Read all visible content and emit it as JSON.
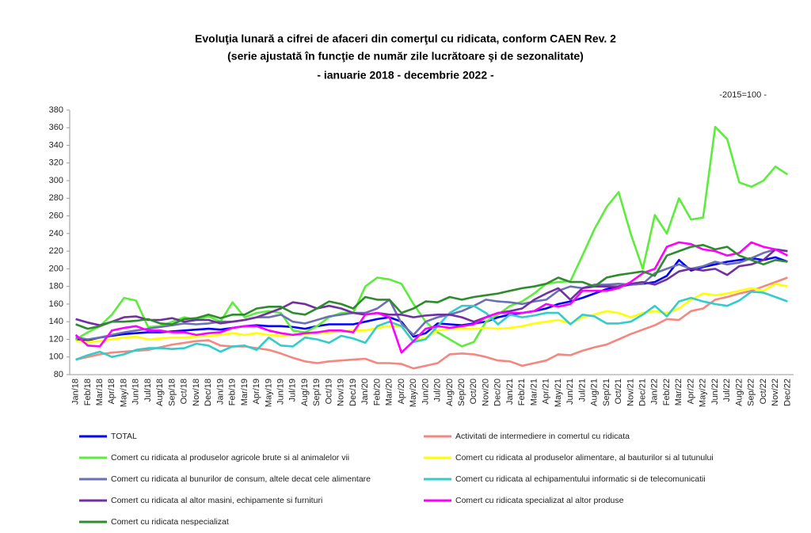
{
  "chart_data": {
    "type": "line",
    "title": [
      "Evoluţia lunară a cifrei de afaceri din comerţul cu ridicata, conform CAEN Rev. 2",
      "(serie ajustată în funcţie de număr zile lucrătoare şi de sezonalitate)",
      "- ianuarie 2018 - decembrie 2022  -"
    ],
    "unit_note": "-2015=100 -",
    "categories": [
      "Jan/18",
      "Feb/18",
      "Mar/18",
      "Apr/18",
      "May/18",
      "Jun/18",
      "Jul/18",
      "Aug/18",
      "Sep/18",
      "Oct/18",
      "Nov/18",
      "Dec/18",
      "Jan/19",
      "Feb/19",
      "Mar/19",
      "Apr/19",
      "May/19",
      "Jun/19",
      "Jul/19",
      "Aug/19",
      "Sep/19",
      "Oct/19",
      "Nov/19",
      "Dec/19",
      "Jan/20",
      "Feb/20",
      "Mar/20",
      "Apr/20",
      "May/20",
      "Jun/20",
      "Jul/20",
      "Aug/20",
      "Sep/20",
      "Oct/20",
      "Nov/20",
      "Dec/20",
      "Jan/21",
      "Feb/21",
      "Mar/21",
      "Apr/21",
      "May/21",
      "Jun/21",
      "Jul/21",
      "Aug/21",
      "Sep/21",
      "Oct/21",
      "Nov/21",
      "Dec/21",
      "Jan/22",
      "Feb/22",
      "Mar/22",
      "Apr/22",
      "May/22",
      "Jun/22",
      "Jul/22",
      "Aug/22",
      "Sep/22",
      "Oct/22",
      "Nov/22",
      "Dec/22"
    ],
    "ylim": [
      80,
      380
    ],
    "yticks": [
      80,
      100,
      120,
      140,
      160,
      180,
      200,
      220,
      240,
      260,
      280,
      300,
      320,
      340,
      360,
      380
    ],
    "grid": false,
    "series": [
      {
        "name": "TOTAL",
        "color": "#0000ff",
        "values": [
          120,
          119,
          122,
          124,
          126,
          127,
          128,
          128,
          129,
          130,
          131,
          132,
          131,
          133,
          135,
          136,
          135,
          135,
          134,
          132,
          135,
          137,
          137,
          137,
          140,
          143,
          145,
          140,
          123,
          127,
          138,
          137,
          136,
          138,
          140,
          145,
          148,
          150,
          152,
          155,
          160,
          163,
          167,
          172,
          177,
          180,
          182,
          183,
          185,
          192,
          210,
          198,
          202,
          205,
          208,
          210,
          212,
          210,
          213,
          208
        ]
      },
      {
        "name": "Activitati de intermediere in comertul cu ridicata",
        "color": "#f4877f",
        "values": [
          97,
          100,
          103,
          105,
          106,
          107,
          108,
          111,
          114,
          116,
          118,
          119,
          113,
          112,
          112,
          110,
          108,
          104,
          99,
          95,
          93,
          95,
          96,
          97,
          98,
          93,
          93,
          92,
          87,
          90,
          93,
          103,
          104,
          103,
          100,
          96,
          95,
          90,
          93,
          96,
          103,
          102,
          107,
          111,
          114,
          120,
          126,
          131,
          136,
          143,
          142,
          152,
          155,
          165,
          168,
          172,
          175,
          180,
          185,
          190
        ]
      },
      {
        "name": "Comert cu ridicata al produselor agricole brute si al animalelor vii",
        "color": "#5ced3c",
        "values": [
          120,
          128,
          135,
          148,
          167,
          164,
          134,
          135,
          140,
          145,
          142,
          146,
          140,
          162,
          145,
          150,
          152,
          150,
          130,
          128,
          135,
          145,
          150,
          150,
          180,
          190,
          188,
          183,
          160,
          140,
          128,
          120,
          112,
          117,
          140,
          148,
          158,
          163,
          172,
          183,
          185,
          186,
          215,
          245,
          270,
          287,
          240,
          200,
          261,
          240,
          280,
          256,
          258,
          361,
          347,
          298,
          293,
          300,
          316,
          307
        ]
      },
      {
        "name": "Comert cu ridicata al produselor alimentare, al bauturilor si al tutunului",
        "color": "#ffff00",
        "values": [
          118,
          117,
          118,
          120,
          122,
          123,
          120,
          121,
          122,
          122,
          123,
          124,
          125,
          127,
          125,
          127,
          125,
          124,
          125,
          126,
          127,
          128,
          129,
          130,
          130,
          133,
          135,
          135,
          118,
          122,
          130,
          132,
          132,
          132,
          133,
          132,
          133,
          135,
          138,
          140,
          142,
          138,
          145,
          148,
          152,
          150,
          145,
          150,
          152,
          150,
          155,
          165,
          172,
          170,
          172,
          175,
          178,
          175,
          183,
          180
        ]
      },
      {
        "name": "Comert cu ridicata al bunurilor de consum, altele decat cele alimentare",
        "color": "#6b6fb3",
        "values": [
          122,
          120,
          122,
          125,
          128,
          130,
          132,
          134,
          136,
          138,
          137,
          138,
          140,
          140,
          142,
          145,
          145,
          148,
          140,
          138,
          142,
          146,
          148,
          150,
          150,
          155,
          165,
          138,
          125,
          140,
          145,
          148,
          152,
          158,
          165,
          163,
          162,
          160,
          163,
          165,
          175,
          180,
          178,
          182,
          182,
          183,
          182,
          183,
          195,
          200,
          205,
          200,
          203,
          208,
          205,
          207,
          212,
          218,
          222,
          220
        ]
      },
      {
        "name": "Comert cu ridicata al echipamentului informatic si de telecomunicatii",
        "color": "#33cccc",
        "values": [
          97,
          102,
          106,
          100,
          103,
          108,
          110,
          110,
          109,
          110,
          115,
          113,
          106,
          112,
          113,
          108,
          122,
          113,
          112,
          122,
          120,
          116,
          124,
          121,
          116,
          135,
          140,
          135,
          117,
          120,
          135,
          150,
          158,
          158,
          150,
          137,
          148,
          145,
          147,
          150,
          150,
          137,
          148,
          146,
          138,
          138,
          140,
          148,
          158,
          146,
          163,
          167,
          163,
          160,
          158,
          164,
          174,
          173,
          168,
          163
        ]
      },
      {
        "name": "Comert cu ridicata al altor masini, echipamente si furnituri",
        "color": "#7030a0",
        "values": [
          143,
          139,
          136,
          140,
          145,
          146,
          142,
          142,
          144,
          140,
          142,
          142,
          138,
          140,
          142,
          145,
          150,
          155,
          162,
          160,
          155,
          158,
          155,
          150,
          148,
          150,
          148,
          148,
          145,
          147,
          148,
          148,
          145,
          140,
          145,
          150,
          152,
          155,
          165,
          172,
          178,
          165,
          178,
          180,
          180,
          180,
          183,
          185,
          182,
          188,
          197,
          200,
          198,
          200,
          193,
          203,
          205,
          210,
          222,
          220
        ]
      },
      {
        "name": "Comert cu ridicata specializat al altor produse",
        "color": "#ff00ff",
        "values": [
          125,
          113,
          112,
          130,
          133,
          135,
          130,
          130,
          128,
          128,
          125,
          127,
          128,
          133,
          135,
          135,
          130,
          127,
          125,
          127,
          128,
          130,
          130,
          128,
          148,
          150,
          145,
          105,
          118,
          132,
          135,
          133,
          135,
          137,
          145,
          150,
          150,
          150,
          152,
          160,
          157,
          160,
          175,
          175,
          175,
          178,
          185,
          195,
          200,
          225,
          230,
          228,
          222,
          220,
          215,
          218,
          230,
          225,
          222,
          215
        ]
      },
      {
        "name": "Comert cu ridicata nespecializat",
        "color": "#2e8b2e",
        "values": [
          137,
          132,
          135,
          140,
          140,
          141,
          143,
          138,
          137,
          143,
          144,
          148,
          144,
          148,
          148,
          155,
          157,
          157,
          150,
          148,
          155,
          163,
          160,
          155,
          168,
          165,
          165,
          150,
          155,
          163,
          162,
          168,
          165,
          168,
          170,
          172,
          175,
          178,
          180,
          183,
          190,
          185,
          185,
          180,
          190,
          193,
          195,
          197,
          192,
          215,
          220,
          225,
          227,
          222,
          225,
          215,
          210,
          205,
          210,
          208
        ]
      }
    ]
  }
}
